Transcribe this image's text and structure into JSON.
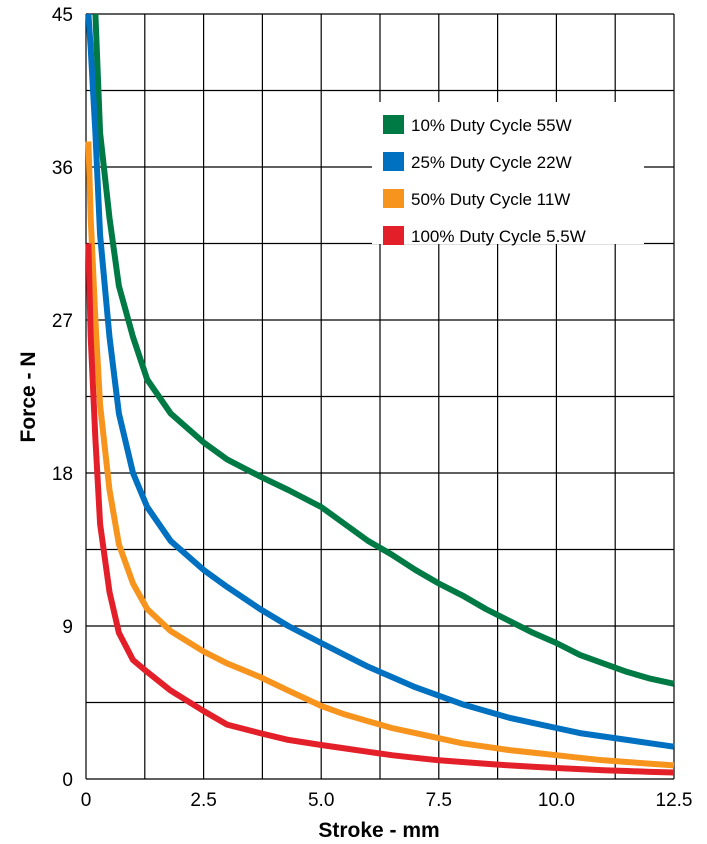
{
  "chart_data": {
    "type": "line",
    "title": "",
    "xlabel": "Stroke - mm",
    "ylabel": "Force - N",
    "xlim": [
      0,
      12.5
    ],
    "ylim": [
      0,
      45
    ],
    "x_ticks": [
      "0",
      "2.5",
      "5.0",
      "7.5",
      "10.0",
      "12.5"
    ],
    "y_ticks": [
      "0",
      "9",
      "18",
      "27",
      "36",
      "45"
    ],
    "grid": true,
    "legend_position": "top-right",
    "series": [
      {
        "name": "10% Duty Cycle 55W",
        "color": "#007a45",
        "points": [
          [
            0.2,
            45
          ],
          [
            0.3,
            38
          ],
          [
            0.5,
            33
          ],
          [
            0.7,
            29
          ],
          [
            1.0,
            26
          ],
          [
            1.3,
            23.5
          ],
          [
            1.8,
            21.5
          ],
          [
            2.5,
            19.8
          ],
          [
            3.0,
            18.8
          ],
          [
            3.7,
            17.8
          ],
          [
            4.3,
            17
          ],
          [
            5.0,
            16
          ],
          [
            5.5,
            15
          ],
          [
            6.0,
            14
          ],
          [
            6.5,
            13.2
          ],
          [
            7.0,
            12.3
          ],
          [
            7.5,
            11.5
          ],
          [
            8.0,
            10.8
          ],
          [
            8.5,
            10
          ],
          [
            9.0,
            9.3
          ],
          [
            9.5,
            8.6
          ],
          [
            10.0,
            8
          ],
          [
            10.5,
            7.3
          ],
          [
            11.0,
            6.8
          ],
          [
            11.5,
            6.3
          ],
          [
            12.0,
            5.9
          ],
          [
            12.5,
            5.6
          ]
        ]
      },
      {
        "name": "25% Duty Cycle 22W",
        "color": "#0070c0",
        "points": [
          [
            0.05,
            45
          ],
          [
            0.1,
            43
          ],
          [
            0.2,
            38
          ],
          [
            0.3,
            32
          ],
          [
            0.5,
            26
          ],
          [
            0.7,
            21.5
          ],
          [
            1.0,
            18
          ],
          [
            1.3,
            16
          ],
          [
            1.8,
            14
          ],
          [
            2.5,
            12.3
          ],
          [
            3.0,
            11.3
          ],
          [
            3.7,
            10
          ],
          [
            4.3,
            9
          ],
          [
            5.0,
            8
          ],
          [
            5.5,
            7.3
          ],
          [
            6.0,
            6.6
          ],
          [
            6.5,
            6
          ],
          [
            7.0,
            5.4
          ],
          [
            7.5,
            4.9
          ],
          [
            8.0,
            4.4
          ],
          [
            8.5,
            4
          ],
          [
            9.0,
            3.6
          ],
          [
            9.5,
            3.3
          ],
          [
            10.0,
            3
          ],
          [
            10.5,
            2.7
          ],
          [
            11.0,
            2.5
          ],
          [
            11.5,
            2.3
          ],
          [
            12.0,
            2.1
          ],
          [
            12.5,
            1.9
          ]
        ]
      },
      {
        "name": "50% Duty Cycle 11W",
        "color": "#f7941d",
        "points": [
          [
            0.05,
            37.5
          ],
          [
            0.1,
            33
          ],
          [
            0.2,
            27
          ],
          [
            0.3,
            22
          ],
          [
            0.5,
            17
          ],
          [
            0.7,
            13.8
          ],
          [
            1.0,
            11.5
          ],
          [
            1.3,
            10
          ],
          [
            1.8,
            8.7
          ],
          [
            2.5,
            7.5
          ],
          [
            3.0,
            6.8
          ],
          [
            3.7,
            6
          ],
          [
            4.3,
            5.2
          ],
          [
            5.0,
            4.3
          ],
          [
            5.5,
            3.8
          ],
          [
            6.0,
            3.4
          ],
          [
            6.5,
            3
          ],
          [
            7.0,
            2.7
          ],
          [
            7.5,
            2.4
          ],
          [
            8.0,
            2.1
          ],
          [
            8.5,
            1.9
          ],
          [
            9.0,
            1.7
          ],
          [
            9.5,
            1.55
          ],
          [
            10.0,
            1.4
          ],
          [
            10.5,
            1.25
          ],
          [
            11.0,
            1.1
          ],
          [
            11.5,
            1
          ],
          [
            12.0,
            0.9
          ],
          [
            12.5,
            0.8
          ]
        ]
      },
      {
        "name": "100% Duty Cycle 5.5W",
        "color": "#e3202a",
        "points": [
          [
            0.05,
            31.5
          ],
          [
            0.1,
            26
          ],
          [
            0.2,
            20
          ],
          [
            0.3,
            15
          ],
          [
            0.5,
            11
          ],
          [
            0.7,
            8.6
          ],
          [
            1.0,
            7
          ],
          [
            1.3,
            6.3
          ],
          [
            1.8,
            5.2
          ],
          [
            2.5,
            4
          ],
          [
            3.0,
            3.2
          ],
          [
            3.7,
            2.7
          ],
          [
            4.3,
            2.3
          ],
          [
            5.0,
            2
          ],
          [
            5.5,
            1.8
          ],
          [
            6.0,
            1.6
          ],
          [
            6.5,
            1.4
          ],
          [
            7.0,
            1.25
          ],
          [
            7.5,
            1.1
          ],
          [
            8.0,
            1
          ],
          [
            8.5,
            0.9
          ],
          [
            9.0,
            0.8
          ],
          [
            9.5,
            0.72
          ],
          [
            10.0,
            0.65
          ],
          [
            10.5,
            0.58
          ],
          [
            11.0,
            0.52
          ],
          [
            11.5,
            0.47
          ],
          [
            12.0,
            0.42
          ],
          [
            12.5,
            0.38
          ]
        ]
      }
    ]
  }
}
